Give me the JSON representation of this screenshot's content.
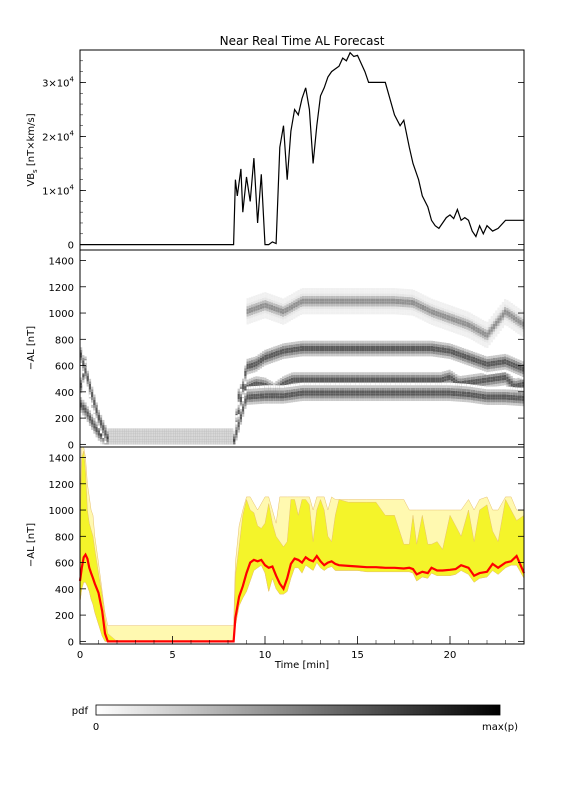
{
  "title": "Near Real Time AL Forecast",
  "colors": {
    "line": "#000000",
    "median": "#ff0000",
    "band_inner": "#f4f42a",
    "band_outer": "#fff9b0",
    "band_edge": "#e8c070"
  },
  "chart_data": [
    {
      "type": "line",
      "name": "vbs-panel",
      "ylabel": "VBs [nT×km/s]",
      "ylabel_parts": {
        "main": "VB",
        "sub": "s",
        "rest": " [nT×km/s]"
      },
      "xlim": [
        0,
        24
      ],
      "ylim": [
        -1000,
        36000
      ],
      "yticks": [
        {
          "value": 0,
          "label": "0",
          "mantissa": "",
          "exp": ""
        },
        {
          "value": 10000,
          "label": "1×10^4",
          "mantissa": "1×10",
          "exp": "4"
        },
        {
          "value": 20000,
          "label": "2×10^4",
          "mantissa": "2×10",
          "exp": "4"
        },
        {
          "value": 30000,
          "label": "3×10^4",
          "mantissa": "3×10",
          "exp": "4"
        }
      ],
      "x": [
        0,
        8.3,
        8.4,
        8.5,
        8.7,
        8.8,
        9.0,
        9.2,
        9.4,
        9.6,
        9.8,
        10.0,
        10.2,
        10.4,
        10.6,
        10.8,
        11.0,
        11.2,
        11.4,
        11.6,
        11.8,
        12.0,
        12.2,
        12.4,
        12.6,
        12.8,
        13.0,
        13.2,
        13.4,
        13.6,
        13.8,
        14.0,
        14.2,
        14.4,
        14.6,
        14.8,
        15.0,
        15.2,
        15.4,
        15.6,
        16.0,
        16.5,
        17.0,
        17.3,
        17.5,
        17.8,
        18.0,
        18.3,
        18.5,
        18.8,
        19.0,
        19.2,
        19.4,
        19.6,
        19.8,
        20.0,
        20.2,
        20.4,
        20.6,
        20.8,
        21.0,
        21.2,
        21.4,
        21.6,
        21.8,
        22.0,
        22.3,
        22.6,
        23.0,
        23.5,
        24.0
      ],
      "y": [
        0,
        0,
        12000,
        9000,
        14000,
        6000,
        12500,
        8000,
        16000,
        4000,
        13000,
        0,
        0,
        500,
        200,
        18000,
        22000,
        12000,
        21000,
        25000,
        24000,
        27000,
        29000,
        25000,
        15000,
        22000,
        27500,
        29000,
        31000,
        32000,
        32500,
        33000,
        34500,
        34000,
        35500,
        34800,
        35000,
        33500,
        32000,
        30000,
        30000,
        30000,
        24000,
        22000,
        23000,
        18000,
        15000,
        12000,
        9000,
        7000,
        4500,
        3500,
        3000,
        4000,
        5000,
        5500,
        4800,
        6500,
        4500,
        5000,
        4500,
        2500,
        1500,
        3500,
        2000,
        3500,
        2500,
        3000,
        4500,
        4500,
        4500
      ]
    },
    {
      "type": "heatmap",
      "name": "al-pdf-panel",
      "ylabel": "−AL [nT]",
      "xlim": [
        0,
        24
      ],
      "ylim": [
        -20,
        1480
      ],
      "yticks": [
        0,
        200,
        400,
        600,
        800,
        1000,
        1200,
        1400
      ],
      "ridges": [
        {
          "x": [
            0,
            0.3,
            0.6,
            1.0,
            1.3,
            1.6,
            8.3,
            8.6,
            9.0,
            9.5,
            10.0,
            10.5,
            11.0,
            11.5,
            12.0,
            13.0,
            14.0,
            15.0,
            16.0,
            17.0,
            18.0,
            19.0,
            19.5,
            20.0,
            20.5,
            21.0,
            22.0,
            23.0,
            23.5,
            24.0
          ],
          "y": [
            400,
            600,
            350,
            200,
            60,
            0,
            0,
            380,
            420,
            450,
            440,
            400,
            450,
            480,
            480,
            480,
            480,
            480,
            480,
            480,
            480,
            480,
            480,
            500,
            450,
            460,
            480,
            500,
            430,
            450
          ]
        },
        {
          "x": [
            0,
            0.3,
            0.7,
            1.0,
            1.5,
            8.3,
            9.0,
            9.5,
            10.0,
            11.0,
            12.0,
            13.0,
            14.0,
            15.0,
            16.0,
            17.0,
            18.0,
            19.0,
            20.0,
            21.0,
            22.0,
            23.0,
            24.0
          ],
          "y": [
            300,
            250,
            150,
            80,
            20,
            0,
            580,
            600,
            650,
            700,
            720,
            720,
            720,
            720,
            720,
            720,
            720,
            720,
            700,
            650,
            600,
            620,
            560
          ]
        },
        {
          "x": [
            0,
            0.5,
            1.0,
            1.5,
            8.3,
            9.0,
            10.0,
            11.0,
            12.0,
            13.0,
            14.0,
            15.0,
            16.0,
            17.0,
            18.0,
            19.0,
            20.0,
            21.0,
            22.0,
            23.0,
            24.0
          ],
          "y": [
            700,
            450,
            200,
            40,
            0,
            350,
            360,
            360,
            380,
            380,
            380,
            380,
            380,
            380,
            380,
            380,
            380,
            370,
            350,
            350,
            340
          ]
        },
        {
          "x": [
            9.0,
            10.0,
            11.0,
            12.0,
            13.0,
            14.0,
            15.0,
            16.0,
            17.0,
            18.0,
            19.0,
            20.0,
            21.0,
            22.0,
            23.0,
            24.0
          ],
          "y": [
            1000,
            1050,
            1000,
            1080,
            1080,
            1080,
            1080,
            1080,
            1080,
            1070,
            1000,
            950,
            900,
            820,
            1000,
            900
          ]
        }
      ],
      "uniform_blocks": [
        {
          "x0": 1.3,
          "x1": 8.3,
          "y0": 0,
          "y1": 120
        }
      ]
    },
    {
      "type": "area",
      "name": "al-forecast-panel",
      "ylabel": "−AL [nT]",
      "xlabel": "Time [min]",
      "xlim": [
        0,
        24
      ],
      "ylim": [
        -20,
        1480
      ],
      "yticks": [
        0,
        200,
        400,
        600,
        800,
        1000,
        1200,
        1400
      ],
      "xticks": [
        0,
        5,
        10,
        15,
        20
      ],
      "x": [
        0,
        0.1,
        0.2,
        0.3,
        0.4,
        0.5,
        0.6,
        0.7,
        0.8,
        1.0,
        1.2,
        1.35,
        1.5,
        2,
        3,
        4,
        5,
        6,
        7,
        8,
        8.3,
        8.4,
        8.6,
        8.8,
        9.0,
        9.2,
        9.4,
        9.6,
        9.8,
        10.0,
        10.2,
        10.4,
        10.6,
        10.8,
        11.0,
        11.2,
        11.4,
        11.6,
        11.8,
        12.0,
        12.2,
        12.4,
        12.6,
        12.8,
        13.0,
        13.2,
        13.4,
        13.6,
        13.8,
        14.0,
        14.5,
        15.0,
        15.5,
        16.0,
        16.5,
        17.0,
        17.5,
        17.8,
        18.0,
        18.2,
        18.5,
        18.8,
        19.0,
        19.3,
        19.6,
        20.0,
        20.3,
        20.6,
        21.0,
        21.3,
        21.6,
        22.0,
        22.3,
        22.6,
        23.0,
        23.3,
        23.6,
        24.0
      ],
      "median": [
        460,
        560,
        640,
        660,
        630,
        560,
        520,
        480,
        440,
        370,
        230,
        60,
        0,
        0,
        0,
        0,
        0,
        0,
        0,
        0,
        0,
        180,
        340,
        420,
        520,
        600,
        620,
        610,
        620,
        580,
        560,
        570,
        500,
        440,
        400,
        480,
        590,
        630,
        620,
        600,
        640,
        620,
        610,
        650,
        610,
        580,
        600,
        610,
        590,
        580,
        575,
        570,
        565,
        565,
        560,
        560,
        555,
        560,
        550,
        510,
        530,
        520,
        560,
        540,
        540,
        545,
        550,
        580,
        560,
        500,
        520,
        530,
        590,
        560,
        600,
        610,
        650,
        520
      ],
      "band_lo": [
        300,
        400,
        450,
        450,
        420,
        380,
        320,
        280,
        220,
        130,
        40,
        0,
        0,
        0,
        0,
        0,
        0,
        0,
        0,
        0,
        0,
        120,
        270,
        330,
        380,
        460,
        540,
        560,
        580,
        520,
        380,
        480,
        400,
        360,
        360,
        380,
        480,
        560,
        560,
        520,
        580,
        560,
        540,
        600,
        560,
        540,
        560,
        570,
        540,
        540,
        540,
        540,
        530,
        530,
        530,
        530,
        530,
        530,
        520,
        460,
        490,
        480,
        520,
        500,
        500,
        500,
        510,
        540,
        510,
        450,
        480,
        490,
        540,
        510,
        560,
        580,
        580,
        480
      ],
      "band_hi": [
        800,
        1400,
        1450,
        1300,
        1000,
        900,
        850,
        800,
        700,
        520,
        350,
        180,
        60,
        0,
        0,
        0,
        0,
        0,
        0,
        0,
        0,
        500,
        720,
        960,
        1080,
        1000,
        980,
        880,
        860,
        900,
        1050,
        900,
        800,
        760,
        720,
        760,
        1080,
        1080,
        960,
        1080,
        1080,
        1040,
        760,
        1000,
        1080,
        1000,
        800,
        760,
        960,
        1080,
        1060,
        1060,
        1060,
        1060,
        960,
        960,
        740,
        740,
        960,
        740,
        960,
        740,
        740,
        760,
        700,
        960,
        880,
        800,
        1000,
        760,
        1000,
        1040,
        840,
        760,
        1080,
        1000,
        920,
        960
      ],
      "outer_hi": [
        1000,
        1480,
        1480,
        1400,
        1200,
        1100,
        1000,
        960,
        800,
        600,
        380,
        220,
        120,
        120,
        120,
        120,
        120,
        120,
        120,
        120,
        120,
        600,
        880,
        1000,
        1100,
        1100,
        1050,
        1000,
        1050,
        1100,
        1100,
        1000,
        900,
        1100,
        1100,
        1100,
        1100,
        1100,
        1100,
        1100,
        1100,
        1100,
        1000,
        1100,
        1100,
        1100,
        1000,
        1100,
        1080,
        1080,
        1080,
        1080,
        1080,
        1080,
        1080,
        1080,
        1080,
        1000,
        1000,
        1000,
        1000,
        1000,
        1000,
        1000,
        1000,
        1000,
        1000,
        1000,
        1080,
        1000,
        1080,
        1100,
        1000,
        1000,
        1100,
        1100,
        1000,
        1000
      ]
    }
  ],
  "colorbar": {
    "label": "pdf",
    "min_label": "0",
    "max_label": "max(p)"
  }
}
